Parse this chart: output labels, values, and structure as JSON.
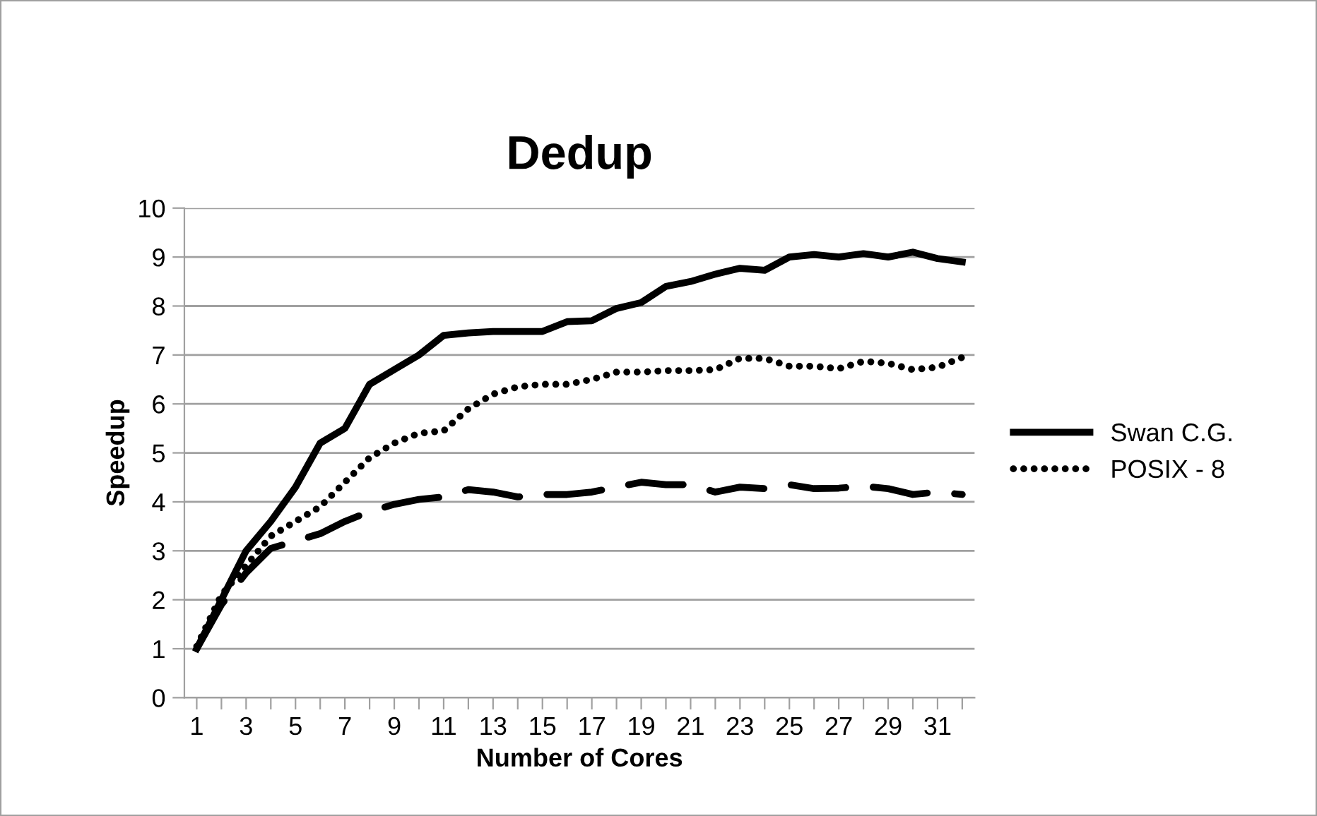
{
  "chart_data": {
    "type": "line",
    "title": "Dedup",
    "xlabel": "Number of Cores",
    "ylabel": "Speedup",
    "categories": [
      "1",
      null,
      "3",
      null,
      "5",
      null,
      "7",
      null,
      "9",
      null,
      "11",
      null,
      "13",
      null,
      "15",
      null,
      "17",
      null,
      "19",
      null,
      "21",
      null,
      "23",
      null,
      "25",
      null,
      "27",
      null,
      "29",
      null,
      "31",
      null
    ],
    "series": [
      {
        "name": "Swan C.G.",
        "color": "#000000",
        "line_style": "solid",
        "values": [
          1.0,
          2.0,
          3.0,
          3.6,
          4.3,
          5.2,
          5.5,
          6.4,
          6.7,
          7.0,
          7.4,
          7.45,
          7.48,
          7.48,
          7.48,
          7.68,
          7.7,
          7.95,
          8.07,
          8.4,
          8.5,
          8.65,
          8.77,
          8.73,
          9.0,
          9.05,
          9.0,
          9.07,
          9.0,
          9.1,
          8.97,
          8.9
        ]
      },
      {
        "name": "POSIX - 8",
        "color": "#000000",
        "line_style": "dotted",
        "values": [
          1.05,
          2.1,
          2.7,
          3.3,
          3.6,
          3.9,
          4.4,
          4.9,
          5.2,
          5.4,
          5.45,
          5.9,
          6.2,
          6.35,
          6.4,
          6.4,
          6.5,
          6.65,
          6.65,
          6.68,
          6.68,
          6.7,
          6.93,
          6.93,
          6.77,
          6.77,
          6.72,
          6.87,
          6.83,
          6.7,
          6.75,
          6.95
        ]
      },
      {
        "color": "#000000",
        "line_style": "dashed",
        "values": [
          1.0,
          1.9,
          2.55,
          3.05,
          3.2,
          3.35,
          3.6,
          3.8,
          3.95,
          4.05,
          4.1,
          4.25,
          4.2,
          4.1,
          4.15,
          4.15,
          4.2,
          4.3,
          4.4,
          4.35,
          4.35,
          4.2,
          4.3,
          4.27,
          4.35,
          4.27,
          4.28,
          4.32,
          4.27,
          4.15,
          4.2,
          4.15
        ]
      }
    ],
    "ylim": [
      0,
      10
    ],
    "yticks": [
      0,
      1,
      2,
      3,
      4,
      5,
      6,
      7,
      8,
      9,
      10
    ],
    "grid": "y",
    "legend": "right",
    "marker": "none"
  }
}
